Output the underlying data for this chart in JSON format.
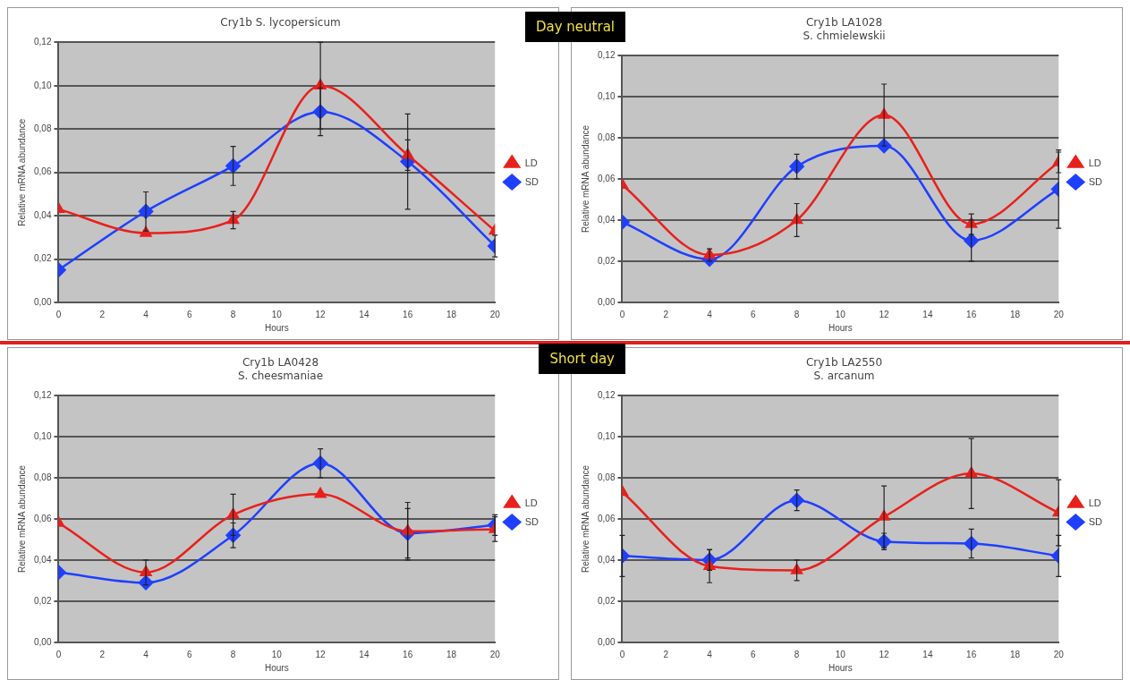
{
  "chart_data": [
    {
      "type": "line",
      "title": "Cry1b S. lycopersicum",
      "xlabel": "Hours",
      "ylabel": "Relative mRNA abundance",
      "x": [
        0,
        4,
        8,
        12,
        16,
        20
      ],
      "xlim": [
        0,
        20
      ],
      "xticks": [
        0,
        2,
        4,
        6,
        8,
        10,
        12,
        14,
        16,
        18,
        20
      ],
      "ylim": [
        0,
        0.12
      ],
      "yticks": [
        {
          "value": 0,
          "label": "0,00"
        },
        {
          "value": 0.02,
          "label": "0,02"
        },
        {
          "value": 0.04,
          "label": "0,04"
        },
        {
          "value": 0.06,
          "label": "0,06"
        },
        {
          "value": 0.08,
          "label": "0,08"
        },
        {
          "value": 0.1,
          "label": "0,10"
        },
        {
          "value": 0.12,
          "label": "0,12"
        }
      ],
      "grid": "y",
      "legend": "right",
      "annotations": [
        "Day neutral"
      ],
      "series": [
        {
          "name": "SD",
          "color": "#1f3fff",
          "marker": "diamond",
          "values": [
            0.015,
            0.042,
            0.063,
            0.088,
            0.065,
            0.026
          ],
          "errors": [
            null,
            0.009,
            0.009,
            0.011,
            0.022,
            0.005
          ]
        },
        {
          "name": "LD",
          "color": "#e8201c",
          "marker": "triangle",
          "values": [
            0.043,
            0.032,
            0.038,
            0.1,
            0.068,
            0.033
          ],
          "errors": [
            null,
            null,
            0.004,
            0.02,
            0.007,
            null
          ]
        }
      ]
    },
    {
      "type": "line",
      "title": "Cry1b LA1028\nS. chmielewskii",
      "xlabel": "Hours",
      "ylabel": "Relative mRNA abundance",
      "x": [
        0,
        4,
        8,
        12,
        16,
        20
      ],
      "xlim": [
        0,
        20
      ],
      "xticks": [
        0,
        2,
        4,
        6,
        8,
        10,
        12,
        14,
        16,
        18,
        20
      ],
      "ylim": [
        0,
        0.12
      ],
      "yticks": [
        {
          "value": 0,
          "label": "0,00"
        },
        {
          "value": 0.02,
          "label": "0,02"
        },
        {
          "value": 0.04,
          "label": "0,04"
        },
        {
          "value": 0.06,
          "label": "0,06"
        },
        {
          "value": 0.08,
          "label": "0,08"
        },
        {
          "value": 0.1,
          "label": "0,10"
        },
        {
          "value": 0.12,
          "label": "0,12"
        }
      ],
      "grid": "y",
      "legend": "right",
      "series": [
        {
          "name": "SD",
          "color": "#1f3fff",
          "marker": "diamond",
          "values": [
            0.039,
            0.021,
            0.066,
            0.076,
            0.03,
            0.055
          ],
          "errors": [
            null,
            null,
            0.006,
            null,
            0.01,
            0.019
          ]
        },
        {
          "name": "LD",
          "color": "#e8201c",
          "marker": "triangle",
          "values": [
            0.057,
            0.023,
            0.04,
            0.091,
            0.038,
            0.068
          ],
          "errors": [
            null,
            0.003,
            0.008,
            0.015,
            0.005,
            0.005
          ]
        }
      ]
    },
    {
      "type": "line",
      "title": "Cry1b LA0428\nS. cheesmaniae",
      "xlabel": "Hours",
      "ylabel": "Relative mRNA abundance",
      "x": [
        0,
        4,
        8,
        12,
        16,
        20
      ],
      "xlim": [
        0,
        20
      ],
      "xticks": [
        0,
        2,
        4,
        6,
        8,
        10,
        12,
        14,
        16,
        18,
        20
      ],
      "ylim": [
        0,
        0.12
      ],
      "yticks": [
        {
          "value": 0,
          "label": "0,00"
        },
        {
          "value": 0.02,
          "label": "0,02"
        },
        {
          "value": 0.04,
          "label": "0,04"
        },
        {
          "value": 0.06,
          "label": "0,06"
        },
        {
          "value": 0.08,
          "label": "0,08"
        },
        {
          "value": 0.1,
          "label": "0,10"
        },
        {
          "value": 0.12,
          "label": "0,12"
        }
      ],
      "grid": "y",
      "legend": "right",
      "annotations": [
        "Short day"
      ],
      "series": [
        {
          "name": "SD",
          "color": "#1f3fff",
          "marker": "diamond",
          "values": [
            0.034,
            0.029,
            0.052,
            0.087,
            0.053,
            0.057
          ],
          "errors": [
            null,
            null,
            0.006,
            0.007,
            0.012,
            0.005
          ]
        },
        {
          "name": "LD",
          "color": "#e8201c",
          "marker": "triangle",
          "values": [
            0.058,
            0.034,
            0.062,
            0.072,
            0.054,
            0.055
          ],
          "errors": [
            null,
            0.006,
            0.01,
            null,
            0.014,
            0.006
          ]
        }
      ]
    },
    {
      "type": "line",
      "title": "Cry1b LA2550\nS. arcanum",
      "xlabel": "Hours",
      "ylabel": "Relative mRNA abundance",
      "x": [
        0,
        4,
        8,
        12,
        16,
        20
      ],
      "xlim": [
        0,
        20
      ],
      "xticks": [
        0,
        2,
        4,
        6,
        8,
        10,
        12,
        14,
        16,
        18,
        20
      ],
      "ylim": [
        0,
        0.12
      ],
      "yticks": [
        {
          "value": 0,
          "label": "0,00"
        },
        {
          "value": 0.02,
          "label": "0,02"
        },
        {
          "value": 0.04,
          "label": "0,04"
        },
        {
          "value": 0.06,
          "label": "0,06"
        },
        {
          "value": 0.08,
          "label": "0,08"
        },
        {
          "value": 0.1,
          "label": "0,10"
        },
        {
          "value": 0.12,
          "label": "0,12"
        }
      ],
      "grid": "y",
      "legend": "right",
      "series": [
        {
          "name": "SD",
          "color": "#1f3fff",
          "marker": "diamond",
          "values": [
            0.042,
            0.04,
            0.069,
            0.049,
            0.048,
            0.042
          ],
          "errors": [
            0.01,
            0.005,
            0.005,
            0.004,
            0.007,
            0.01
          ]
        },
        {
          "name": "LD",
          "color": "#e8201c",
          "marker": "triangle",
          "values": [
            0.073,
            0.037,
            0.035,
            0.061,
            0.082,
            0.063
          ],
          "errors": [
            null,
            0.008,
            0.005,
            0.015,
            0.017,
            0.016
          ]
        }
      ]
    }
  ]
}
